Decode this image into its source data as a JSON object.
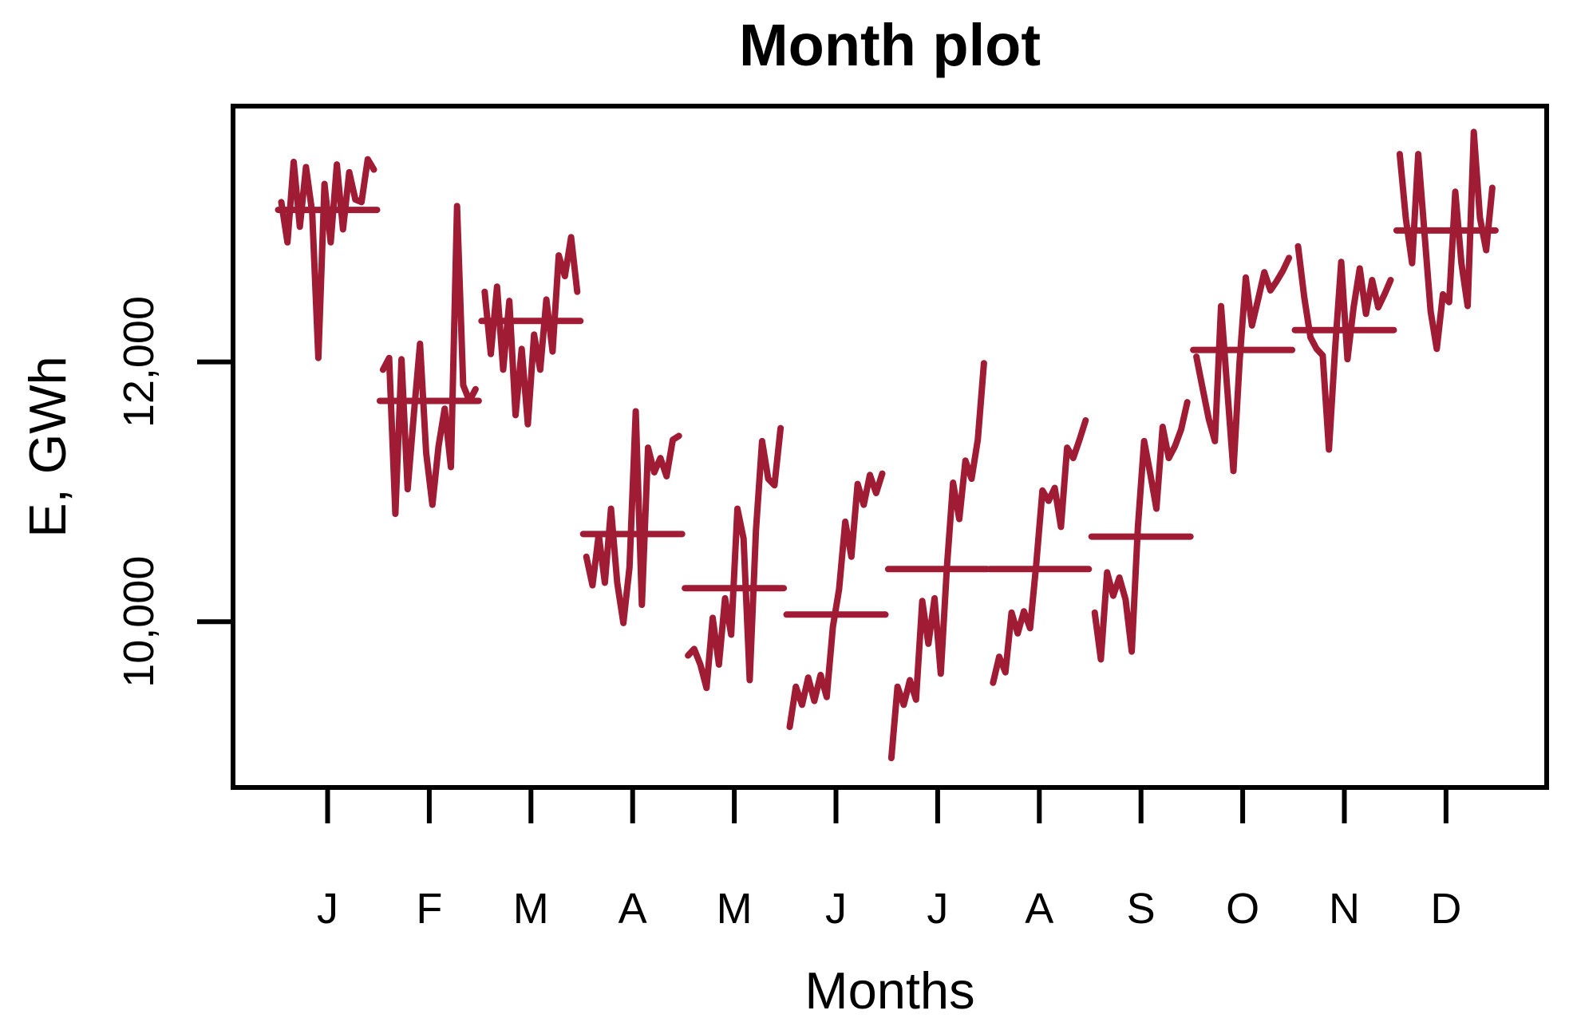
{
  "chart_data": {
    "type": "line",
    "subtype": "seasonal-subseries-monthplot",
    "title": "Month plot",
    "xlabel": "Months",
    "ylabel": "E, GWh",
    "grid": false,
    "legend": "none",
    "background_color": "#ffffff",
    "axis_color": "#000000",
    "series_color": "#A01B34",
    "ylim": [
      8724,
      13969
    ],
    "yticks": [
      {
        "label": "10,000",
        "value": 10000
      },
      {
        "label": "12,000",
        "value": 12000
      }
    ],
    "months": [
      {
        "label": "J",
        "mean": 13170,
        "values": [
          13230,
          12920,
          13540,
          13040,
          13500,
          13150,
          12030,
          13370,
          12920,
          13520,
          13020,
          13460,
          13250,
          13230,
          13560,
          13480
        ]
      },
      {
        "label": "F",
        "mean": 11700,
        "values": [
          11940,
          12030,
          10830,
          12020,
          11020,
          11600,
          12140,
          11300,
          10900,
          11350,
          11640,
          11190,
          13200,
          11820,
          11700,
          11790
        ]
      },
      {
        "label": "M",
        "mean": 12315,
        "values": [
          12540,
          12060,
          12580,
          11940,
          12470,
          11590,
          12100,
          11520,
          12210,
          11940,
          12480,
          12080,
          12820,
          12660,
          12960,
          12540
        ]
      },
      {
        "label": "A",
        "mean": 10675,
        "values": [
          10500,
          10280,
          10670,
          10300,
          10870,
          10300,
          9990,
          10420,
          11620,
          10130,
          11340,
          11150,
          11260,
          11120,
          11400,
          11430
        ]
      },
      {
        "label": "M",
        "mean": 10258,
        "values": [
          9740,
          9790,
          9670,
          9490,
          10030,
          9670,
          10180,
          9900,
          10870,
          10640,
          9550,
          10700,
          11390,
          11100,
          11050,
          11490
        ]
      },
      {
        "label": "J",
        "mean": 10055,
        "values": [
          9190,
          9500,
          9360,
          9570,
          9390,
          9590,
          9420,
          9960,
          10250,
          10770,
          10500,
          11060,
          10900,
          11130,
          10990,
          11140
        ]
      },
      {
        "label": "J",
        "mean": 10405,
        "values": [
          8950,
          9500,
          9360,
          9550,
          9400,
          10160,
          9830,
          10180,
          9600,
          10420,
          11070,
          10790,
          11240,
          11100,
          11400,
          11990
        ]
      },
      {
        "label": "A",
        "mean": 10405,
        "values": [
          9530,
          9730,
          9610,
          10070,
          9910,
          10080,
          9950,
          10440,
          11010,
          10930,
          11030,
          10730,
          11340,
          11260,
          11400,
          11550
        ]
      },
      {
        "label": "S",
        "mean": 10655,
        "values": [
          10070,
          9710,
          10380,
          10200,
          10340,
          10170,
          9770,
          10730,
          11390,
          11140,
          10870,
          11500,
          11260,
          11350,
          11480,
          11690
        ]
      },
      {
        "label": "O",
        "mean": 12092,
        "values": [
          12040,
          11800,
          11560,
          11390,
          12430,
          11790,
          11160,
          12000,
          12650,
          12280,
          12480,
          12690,
          12550,
          12620,
          12700,
          12800
        ]
      },
      {
        "label": "N",
        "mean": 12245,
        "values": [
          12890,
          12500,
          12190,
          12100,
          12050,
          11325,
          12100,
          12770,
          12020,
          12420,
          12720,
          12370,
          12630,
          12420,
          12520,
          12630
        ]
      },
      {
        "label": "D",
        "mean": 13012,
        "values": [
          13600,
          13100,
          12760,
          13600,
          13000,
          12390,
          12100,
          12520,
          12460,
          13310,
          12760,
          12430,
          13770,
          13110,
          12860,
          13340
        ]
      }
    ]
  }
}
